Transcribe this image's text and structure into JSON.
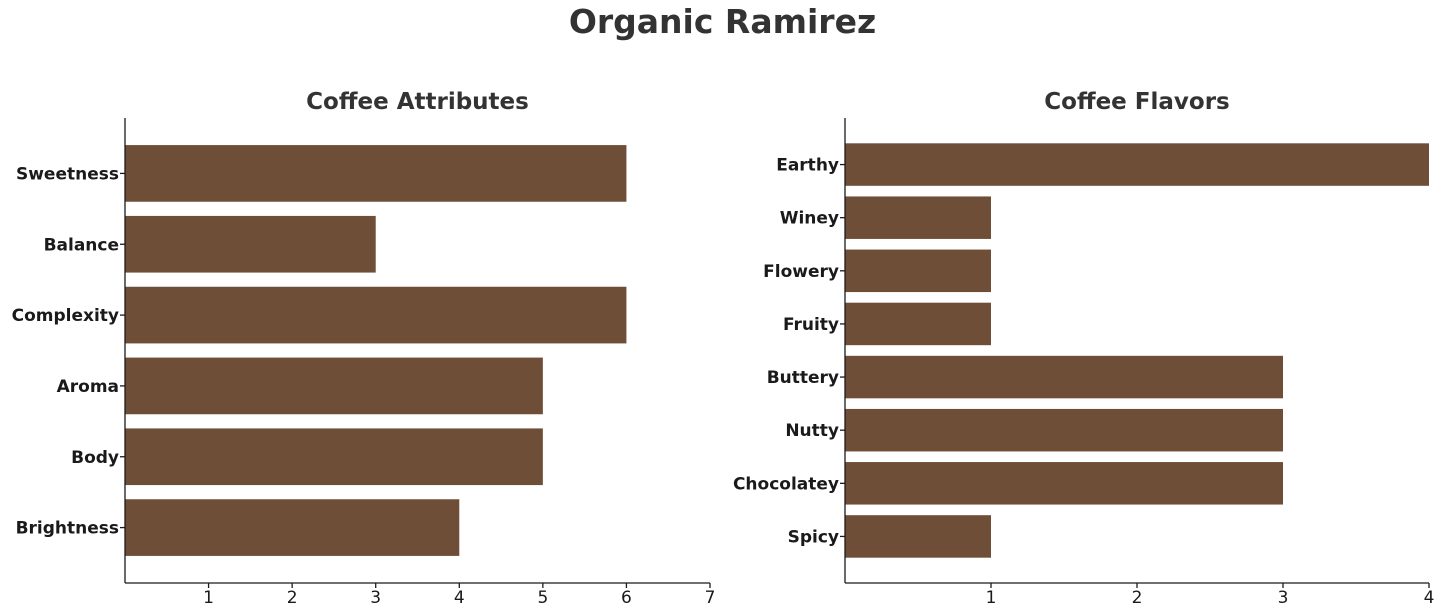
{
  "title": "Organic Ramirez",
  "colors": {
    "bar": "#6f4e37",
    "axis": "#1a1a1a",
    "title": "#333333"
  },
  "chart_data": [
    {
      "type": "bar",
      "orientation": "horizontal",
      "title": "Coffee Attributes",
      "categories": [
        "Sweetness",
        "Balance",
        "Complexity",
        "Aroma",
        "Body",
        "Brightness"
      ],
      "values": [
        6,
        3,
        6,
        5,
        5,
        4
      ],
      "xlim": [
        0,
        7
      ],
      "xticks": [
        1,
        2,
        3,
        4,
        5,
        6,
        7
      ],
      "xlabel": "",
      "ylabel": "",
      "grid": false
    },
    {
      "type": "bar",
      "orientation": "horizontal",
      "title": "Coffee Flavors",
      "categories": [
        "Earthy",
        "Winey",
        "Flowery",
        "Fruity",
        "Buttery",
        "Nutty",
        "Chocolatey",
        "Spicy"
      ],
      "values": [
        4,
        1,
        1,
        1,
        3,
        3,
        3,
        1
      ],
      "xlim": [
        0,
        4
      ],
      "xticks": [
        1,
        2,
        3,
        4
      ],
      "xlabel": "",
      "ylabel": "",
      "grid": false
    }
  ]
}
